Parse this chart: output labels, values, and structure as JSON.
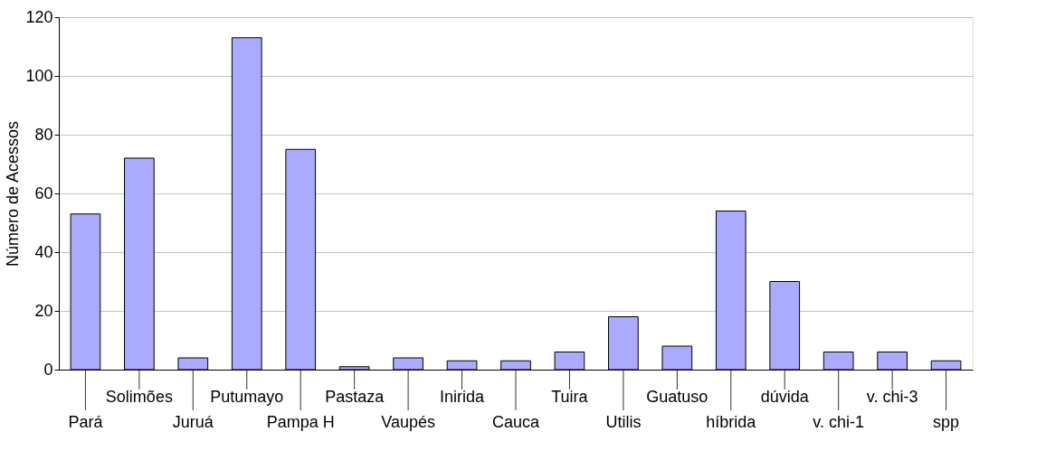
{
  "chart_data": {
    "type": "bar",
    "ylabel": "Número de Acessos",
    "categories": [
      "Pará",
      "Solimões",
      "Juruá",
      "Putumayo",
      "Pampa H",
      "Pastaza",
      "Vaupés",
      "Inirida",
      "Cauca",
      "Tuira",
      "Utilis",
      "Guatuso",
      "híbrida",
      "dúvida",
      "v. chi-1",
      "v. chi-3",
      "spp"
    ],
    "values": [
      53,
      72,
      4,
      113,
      75,
      1,
      4,
      3,
      3,
      6,
      18,
      8,
      54,
      30,
      6,
      6,
      3
    ],
    "color": "#aaaaff",
    "ylim": [
      0,
      120
    ],
    "yticks": [
      0,
      20,
      40,
      60,
      80,
      100,
      120
    ],
    "grid": "y"
  }
}
